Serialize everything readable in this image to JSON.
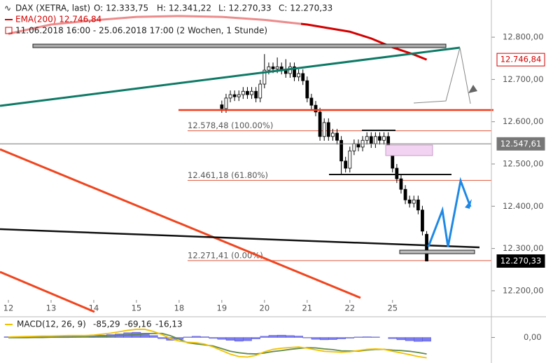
{
  "chart_data": [
    {
      "type": "candlestick",
      "header": {
        "symbol": "DAX (XETRA, last)",
        "open": "O: 12.333,75",
        "high": "H: 12.341,22",
        "low": "L: 12.270,33",
        "close": "C: 12.270,33",
        "ema": "EMA(200) 12.746,84",
        "range": "11.06.2018 16:00 - 25.06.2018 17:00 (2 Wochen, 1 Stunde)"
      },
      "x": [
        50,
        51,
        52,
        53,
        54,
        55,
        56,
        57,
        58,
        59,
        60,
        61,
        62,
        63,
        64,
        65,
        66,
        67,
        68,
        69,
        70,
        71,
        72,
        73,
        74,
        75,
        76,
        77,
        78,
        79,
        80,
        81,
        82,
        83,
        84,
        85,
        86,
        87,
        88,
        89,
        90,
        91,
        92,
        93,
        94,
        95,
        96,
        97,
        98
      ],
      "open": [
        12640,
        12631,
        12656,
        12664,
        12659,
        12664,
        12672,
        12664,
        12672,
        12656,
        12689,
        12722,
        12730,
        12725,
        12730,
        12722,
        12714,
        12730,
        12706,
        12714,
        12697,
        12656,
        12639,
        12623,
        12565,
        12598,
        12565,
        12573,
        12556,
        12507,
        12490,
        12531,
        12548,
        12540,
        12556,
        12565,
        12548,
        12565,
        12556,
        12565,
        12531,
        12490,
        12465,
        12440,
        12415,
        12407,
        12415,
        12391,
        12333.75
      ],
      "high": [
        12650,
        12666,
        12674,
        12674,
        12674,
        12682,
        12682,
        12682,
        12682,
        12699,
        12760,
        12740,
        12740,
        12752,
        12740,
        12748,
        12740,
        12740,
        12724,
        12724,
        12707,
        12666,
        12649,
        12633,
        12608,
        12608,
        12583,
        12583,
        12566,
        12517,
        12541,
        12558,
        12558,
        12566,
        12575,
        12575,
        12575,
        12575,
        12575,
        12575,
        12541,
        12500,
        12475,
        12450,
        12425,
        12425,
        12425,
        12401,
        12341.22
      ],
      "low": [
        12621,
        12621,
        12646,
        12649,
        12649,
        12654,
        12654,
        12654,
        12646,
        12646,
        12679,
        12712,
        12715,
        12715,
        12712,
        12704,
        12704,
        12696,
        12696,
        12687,
        12646,
        12629,
        12613,
        12555,
        12555,
        12555,
        12555,
        12546,
        12475,
        12480,
        12480,
        12521,
        12530,
        12530,
        12546,
        12538,
        12538,
        12546,
        12546,
        12521,
        12480,
        12455,
        12430,
        12405,
        12397,
        12397,
        12381,
        12331,
        12270.33
      ],
      "close": [
        12631,
        12656,
        12664,
        12659,
        12664,
        12672,
        12664,
        12672,
        12656,
        12689,
        12722,
        12730,
        12725,
        12730,
        12722,
        12714,
        12730,
        12706,
        12714,
        12697,
        12656,
        12639,
        12623,
        12565,
        12598,
        12565,
        12573,
        12556,
        12507,
        12490,
        12531,
        12548,
        12540,
        12556,
        12565,
        12548,
        12565,
        12556,
        12565,
        12531,
        12490,
        12465,
        12440,
        12415,
        12407,
        12415,
        12391,
        12341,
        12270.33
      ],
      "up_color": "#ffffff",
      "down_color": "#000000",
      "ema": {
        "color": "#d40000",
        "x": [
          0,
          10,
          20,
          30,
          40,
          50,
          60,
          70,
          80,
          85,
          90,
          95,
          98
        ],
        "values": [
          12808,
          12830,
          12840,
          12848,
          12850,
          12848,
          12841,
          12830,
          12813,
          12797,
          12776,
          12759,
          12746.84
        ]
      },
      "xlim": [
        0,
        113
      ],
      "xticks": [
        {
          "value": 0,
          "label": "12"
        },
        {
          "value": 10,
          "label": "13"
        },
        {
          "value": 20,
          "label": "14"
        },
        {
          "value": 30,
          "label": "15"
        },
        {
          "value": 40,
          "label": "18"
        },
        {
          "value": 50,
          "label": "19"
        },
        {
          "value": 60,
          "label": "20"
        },
        {
          "value": 70,
          "label": "21"
        },
        {
          "value": 80,
          "label": "22"
        },
        {
          "value": 90,
          "label": "25"
        }
      ],
      "ylim": [
        12175,
        12888
      ],
      "yticks": [
        {
          "value": 12200,
          "label": "12.200,00"
        },
        {
          "value": 12300,
          "label": "12.300,00"
        },
        {
          "value": 12400,
          "label": "12.400,00"
        },
        {
          "value": 12500,
          "label": "12.500,00"
        },
        {
          "value": 12600,
          "label": "12.600,00"
        },
        {
          "value": 12700,
          "label": "12.700,00"
        },
        {
          "value": 12800,
          "label": "12.800,00"
        }
      ],
      "fib_levels": [
        {
          "value": 12578.48,
          "label": "12.578,48 (100.00%)"
        },
        {
          "value": 12461.18,
          "label": "12.461,18 (61.80%)"
        },
        {
          "value": 12271.41,
          "label": "12.271,41 (0.00%)"
        }
      ],
      "badges": [
        {
          "value": 12746.84,
          "label": "12.746,84",
          "style": "ema"
        },
        {
          "value": 12547.61,
          "label": "12.547,61",
          "style": "line"
        },
        {
          "value": 12270.33,
          "label": "12.270,33",
          "style": "last"
        }
      ]
    },
    {
      "type": "macd",
      "legend": {
        "name": "MACD(12, 26, 9)",
        "macd": "-85,29",
        "signal": "-69,16",
        "histogram": "-16,13"
      },
      "x": [
        0,
        2,
        4,
        6,
        8,
        10,
        12,
        14,
        16,
        18,
        20,
        22,
        24,
        26,
        28,
        30,
        32,
        34,
        36,
        38,
        40,
        42,
        44,
        46,
        48,
        50,
        52,
        54,
        56,
        58,
        60,
        62,
        64,
        66,
        68,
        70,
        72,
        74,
        76,
        78,
        80,
        82,
        84,
        86,
        88,
        90,
        92,
        94,
        96,
        98
      ],
      "histogram": {
        "color": "#7b7bf0",
        "values": [
          3,
          4,
          5,
          5,
          6,
          5,
          6,
          7,
          6,
          5,
          8,
          10,
          12,
          15,
          20,
          22,
          18,
          8,
          -5,
          -12,
          -8,
          2,
          5,
          3,
          -4,
          -8,
          -12,
          -16,
          -14,
          -6,
          5,
          9,
          10,
          8,
          6,
          -2,
          -8,
          -10,
          -9,
          -6,
          -3,
          2,
          3,
          2,
          0,
          -5,
          -10,
          -14,
          -17,
          -16.13
        ]
      },
      "macd": {
        "color": "#f2c200",
        "values": [
          2,
          3,
          4,
          5,
          6,
          6,
          7,
          8,
          8,
          8,
          10,
          14,
          18,
          24,
          30,
          34,
          34,
          25,
          12,
          -5,
          -15,
          -20,
          -22,
          -28,
          -40,
          -55,
          -70,
          -80,
          -82,
          -75,
          -60,
          -50,
          -45,
          -42,
          -40,
          -45,
          -52,
          -58,
          -60,
          -62,
          -60,
          -55,
          -50,
          -48,
          -50,
          -58,
          -65,
          -72,
          -80,
          -85.29
        ]
      },
      "signal": {
        "color": "#5f8a4a",
        "values": [
          -1,
          -1,
          -1,
          0,
          0,
          1,
          1,
          1,
          2,
          3,
          2,
          4,
          6,
          9,
          10,
          12,
          16,
          17,
          17,
          7,
          -7,
          -22,
          -27,
          -31,
          -36,
          -47,
          -58,
          -64,
          -68,
          -69,
          -65,
          -59,
          -55,
          -50,
          -46,
          -43,
          -44,
          -48,
          -51,
          -56,
          -57,
          -57,
          -53,
          -50,
          -50,
          -53,
          -55,
          -58,
          -63,
          -69.16
        ]
      },
      "xlim": [
        0,
        113
      ],
      "ylim": [
        -110,
        75
      ],
      "yticks": [
        {
          "value": 0,
          "label": "0,00"
        }
      ]
    }
  ]
}
